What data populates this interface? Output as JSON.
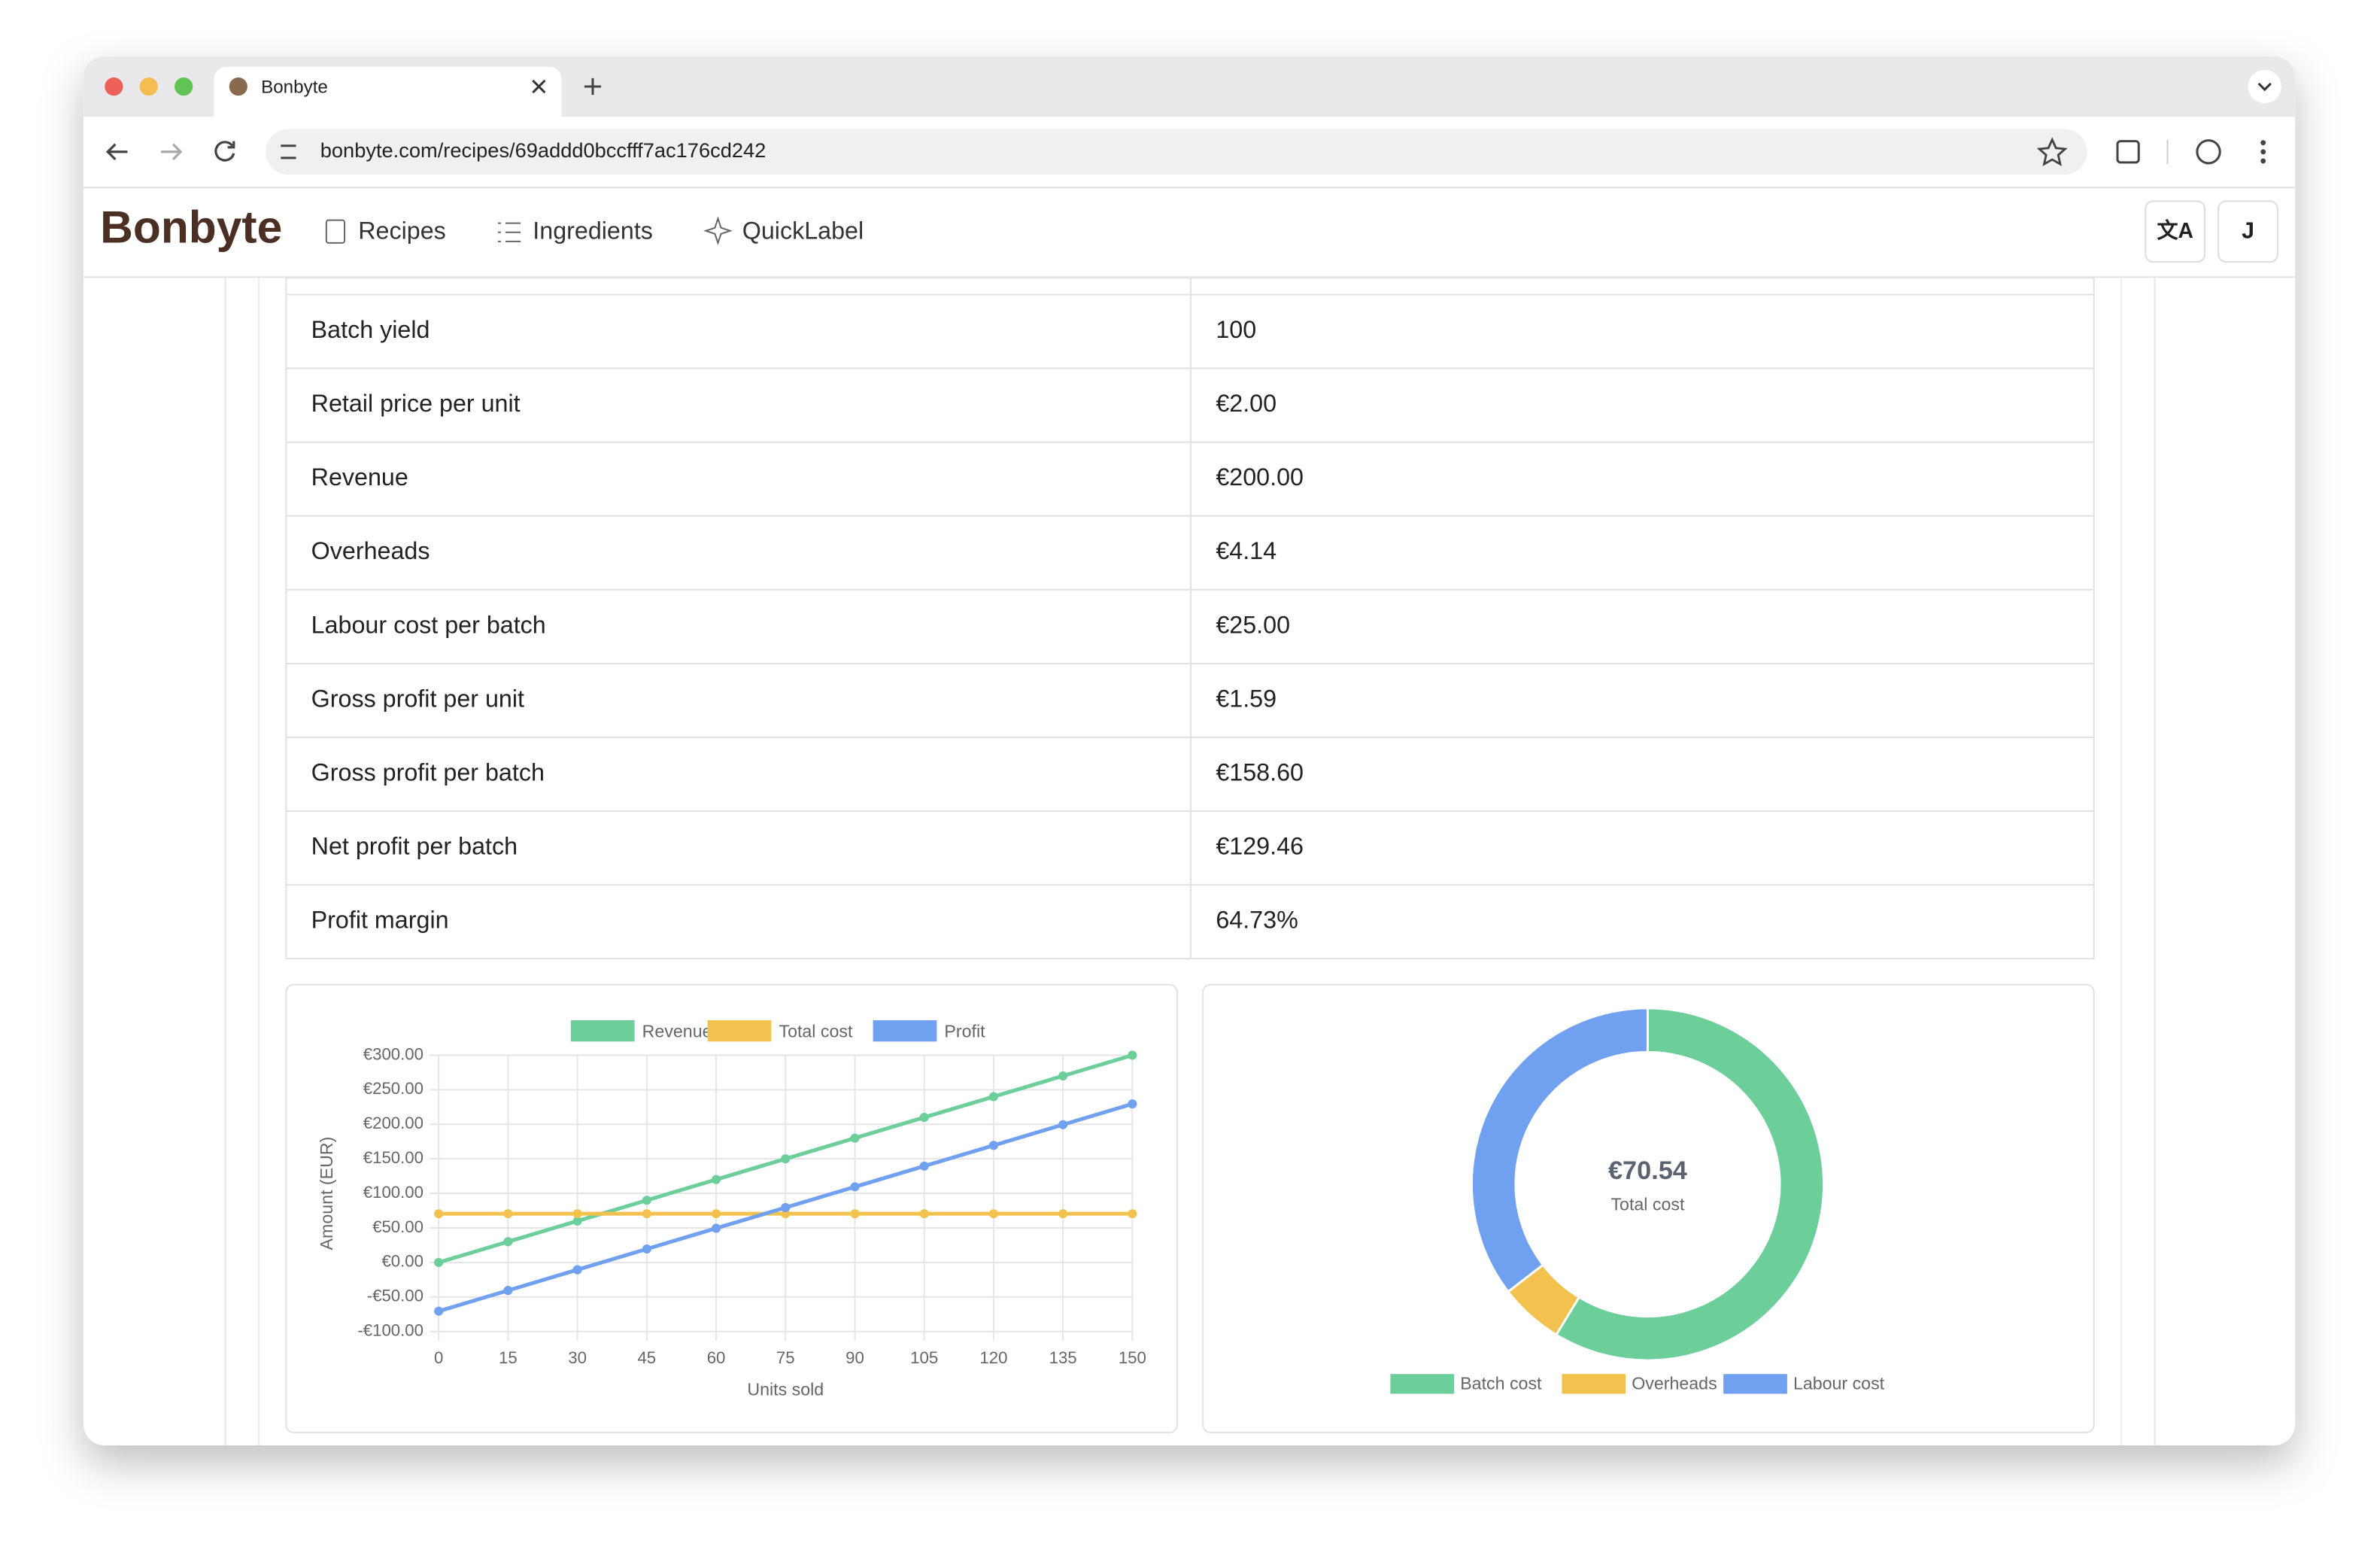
{
  "browser": {
    "tab_title": "Bonbyte",
    "url": "bonbyte.com/recipes/69addd0bccfff7ac176cd242"
  },
  "nav": {
    "brand": "Bonbyte",
    "links": [
      "Recipes",
      "Ingredients",
      "QuickLabel"
    ],
    "avatar": "J"
  },
  "table": {
    "rows": [
      [
        "Batch yield",
        "100"
      ],
      [
        "Retail price per unit",
        "€2.00"
      ],
      [
        "Revenue",
        "€200.00"
      ],
      [
        "Overheads",
        "€4.14"
      ],
      [
        "Labour cost per batch",
        "€25.00"
      ],
      [
        "Gross profit per unit",
        "€1.59"
      ],
      [
        "Gross profit per batch",
        "€158.60"
      ],
      [
        "Net profit per batch",
        "€129.46"
      ],
      [
        "Profit margin",
        "64.73%"
      ]
    ]
  },
  "chart_data": [
    {
      "type": "line",
      "x_label": "Units sold",
      "y_label": "Amount (EUR)",
      "x": [
        0,
        15,
        30,
        45,
        60,
        75,
        90,
        105,
        120,
        135,
        150
      ],
      "series": [
        {
          "name": "Revenue",
          "color": "#6ccf9a",
          "values": [
            0,
            30,
            60,
            90,
            120,
            150,
            180,
            210,
            240,
            270,
            300
          ]
        },
        {
          "name": "Total cost",
          "color": "#f2c14e",
          "values": [
            70.54,
            70.54,
            70.54,
            70.54,
            70.54,
            70.54,
            70.54,
            70.54,
            70.54,
            70.54,
            70.54
          ]
        },
        {
          "name": "Profit",
          "color": "#70a1f0",
          "values": [
            -70.54,
            -40.54,
            -10.54,
            19.46,
            49.46,
            79.46,
            109.46,
            139.46,
            169.46,
            199.46,
            229.46
          ]
        }
      ],
      "xlim": [
        0,
        150
      ],
      "xticks": [
        0,
        15,
        30,
        45,
        60,
        75,
        90,
        105,
        120,
        135,
        150
      ],
      "ylim": [
        -100,
        300
      ],
      "yticks": [
        {
          "value": -100,
          "label": "-€100.00"
        },
        {
          "value": -50,
          "label": "-€50.00"
        },
        {
          "value": 0,
          "label": "€0.00"
        },
        {
          "value": 50,
          "label": "€50.00"
        },
        {
          "value": 100,
          "label": "€100.00"
        },
        {
          "value": 150,
          "label": "€150.00"
        },
        {
          "value": 200,
          "label": "€200.00"
        },
        {
          "value": 250,
          "label": "€250.00"
        },
        {
          "value": 300,
          "label": "€300.00"
        }
      ],
      "grid": true,
      "legend": "top"
    },
    {
      "type": "doughnut",
      "center_label": "€70.54",
      "center_sublabel": "Total cost",
      "categories": [
        "Batch cost",
        "Overheads",
        "Labour cost"
      ],
      "values": [
        41.4,
        4.14,
        25
      ],
      "colors": [
        "#6ccf9a",
        "#f2c14e",
        "#70a1f0"
      ],
      "legend": "bottom"
    }
  ]
}
